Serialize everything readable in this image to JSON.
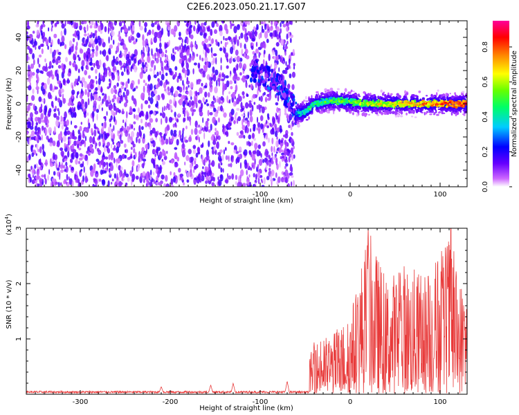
{
  "title": "C2E6.2023.050.21.17.G07",
  "charts": [
    {
      "type": "heatmap",
      "xlabel": "Height of straight line (km)",
      "ylabel": "Frequency (Hz)",
      "xlim": [
        -360,
        130
      ],
      "ylim": [
        -50,
        50
      ],
      "xticks": [
        -300,
        -200,
        -100,
        0,
        100
      ],
      "yticks": [
        -40,
        -20,
        0,
        20,
        40
      ],
      "colorbar": {
        "label": "Normalized spectral amplitude",
        "range": [
          0,
          0.95
        ],
        "ticks": [
          "0.0",
          "0.2",
          "0.4",
          "0.6",
          "0.8"
        ],
        "colormap": [
          "#ffffff",
          "#cc66ff",
          "#6600ff",
          "#0000ff",
          "#00ccff",
          "#00ff66",
          "#66ff00",
          "#ffff00",
          "#ff8800",
          "#ff0000",
          "#ff0099"
        ]
      },
      "regions": [
        {
          "name": "noise",
          "x_range": [
            -360,
            -62
          ],
          "freq_range": [
            -50,
            50
          ],
          "amplitude": "0.0–0.2"
        },
        {
          "name": "signal-band",
          "x_range": [
            -60,
            130
          ],
          "center_freq": 0,
          "bandwidth": 8,
          "amplitude": "0.2–0.95"
        }
      ],
      "track": [
        {
          "x": -100,
          "f": 18
        },
        {
          "x": -80,
          "f": 12
        },
        {
          "x": -70,
          "f": 6
        },
        {
          "x": -60,
          "f": -6
        },
        {
          "x": -50,
          "f": -5
        },
        {
          "x": -40,
          "f": 0
        },
        {
          "x": -20,
          "f": 2
        },
        {
          "x": 0,
          "f": 1
        },
        {
          "x": 20,
          "f": 0
        },
        {
          "x": 50,
          "f": 0
        },
        {
          "x": 100,
          "f": 0
        },
        {
          "x": 130,
          "f": 0
        }
      ]
    },
    {
      "type": "line",
      "xlabel": "Height of straight line (km)",
      "ylabel": "SNR (10 * v/v)",
      "yexponent": "(x10",
      "yexponent_power": "4",
      "yexponent_close": ")",
      "xlim": [
        -360,
        130
      ],
      "ylim": [
        0,
        3
      ],
      "xticks": [
        -300,
        -200,
        -100,
        0,
        100
      ],
      "yticks": [
        1,
        2,
        3
      ],
      "color": "#e83a3a",
      "envelope": [
        {
          "x": -360,
          "y": 0.03
        },
        {
          "x": -210,
          "y": 0.12
        },
        {
          "x": -155,
          "y": 0.15
        },
        {
          "x": -130,
          "y": 0.18
        },
        {
          "x": -70,
          "y": 0.22
        },
        {
          "x": -50,
          "y": 0.4
        },
        {
          "x": -40,
          "y": 0.95
        },
        {
          "x": -20,
          "y": 1.1
        },
        {
          "x": 0,
          "y": 1.45
        },
        {
          "x": 20,
          "y": 3.0
        },
        {
          "x": 40,
          "y": 2.1
        },
        {
          "x": 60,
          "y": 2.4
        },
        {
          "x": 80,
          "y": 2.2
        },
        {
          "x": 100,
          "y": 2.6
        },
        {
          "x": 112,
          "y": 3.0
        },
        {
          "x": 120,
          "y": 2.1
        },
        {
          "x": 130,
          "y": 2.0
        }
      ],
      "peaks": [
        {
          "x": -210,
          "y": 0.12
        },
        {
          "x": -155,
          "y": 0.15
        },
        {
          "x": -130,
          "y": 0.18
        },
        {
          "x": -70,
          "y": 0.22
        },
        {
          "x": 20,
          "y": 3.0
        },
        {
          "x": 112,
          "y": 3.0
        }
      ]
    }
  ]
}
